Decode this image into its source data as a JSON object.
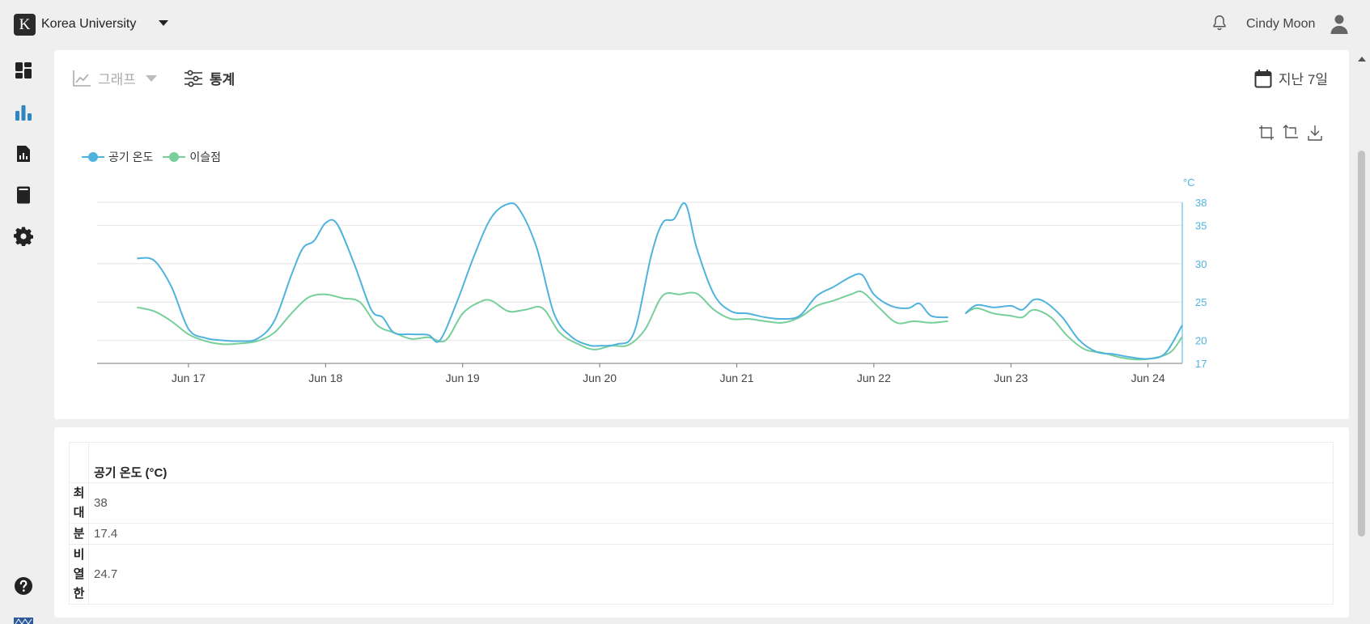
{
  "header": {
    "logo_letter": "K",
    "org_name": "Korea University",
    "user_name": "Cindy Moon"
  },
  "sidebar": {
    "items": [
      "dashboard-icon",
      "bar-chart-icon",
      "report-icon",
      "device-icon",
      "gear-icon",
      "help-icon"
    ]
  },
  "toolbar": {
    "graph_label": "그래프",
    "stats_label": "통계",
    "date_label": "지난 7일"
  },
  "colors": {
    "air_temp": "#4fb3de",
    "dew_point": "#77cf9b",
    "active_nav": "#2e86c1"
  },
  "chart_data": {
    "type": "line",
    "ylabel": "°C",
    "ylim": [
      17,
      38
    ],
    "yticks": [
      17,
      20,
      25,
      30,
      35,
      38
    ],
    "xlim": [
      "2024-06-16T08:00",
      "2024-06-24T06:00"
    ],
    "xticks": [
      {
        "date": "2024-06-17",
        "label": "Jun 17"
      },
      {
        "date": "2024-06-18",
        "label": "Jun 18"
      },
      {
        "date": "2024-06-19",
        "label": "Jun 19"
      },
      {
        "date": "2024-06-20",
        "label": "Jun 20"
      },
      {
        "date": "2024-06-21",
        "label": "Jun 21"
      },
      {
        "date": "2024-06-22",
        "label": "Jun 22"
      },
      {
        "date": "2024-06-23",
        "label": "Jun 23"
      },
      {
        "date": "2024-06-24",
        "label": "Jun 24"
      }
    ],
    "legend_position": "top-left",
    "grid": true,
    "series": [
      {
        "name": "공기 온도",
        "segments": [
          [
            [
              "2024-06-16T15:00",
              30.7
            ],
            [
              "2024-06-16T18:00",
              30.4
            ],
            [
              "2024-06-16T21:00",
              27.0
            ],
            [
              "2024-06-17T00:00",
              21.5
            ],
            [
              "2024-06-17T03:00",
              20.3
            ],
            [
              "2024-06-17T06:00",
              20.0
            ],
            [
              "2024-06-17T09:00",
              19.9
            ],
            [
              "2024-06-17T12:00",
              20.2
            ],
            [
              "2024-06-17T15:00",
              22.5
            ],
            [
              "2024-06-17T18:00",
              28.5
            ],
            [
              "2024-06-17T20:00",
              32.0
            ],
            [
              "2024-06-17T22:00",
              33.0
            ],
            [
              "2024-06-18T00:00",
              35.3
            ],
            [
              "2024-06-18T02:00",
              35.2
            ],
            [
              "2024-06-18T05:00",
              30.0
            ],
            [
              "2024-06-18T08:00",
              24.0
            ],
            [
              "2024-06-18T10:00",
              23.0
            ],
            [
              "2024-06-18T12:00",
              21.0
            ],
            [
              "2024-06-18T15:00",
              20.8
            ],
            [
              "2024-06-18T18:00",
              20.7
            ],
            [
              "2024-06-18T20:00",
              20.0
            ],
            [
              "2024-06-18T23:00",
              25.0
            ],
            [
              "2024-06-19T02:00",
              31.0
            ],
            [
              "2024-06-19T05:00",
              36.0
            ],
            [
              "2024-06-19T08:00",
              37.8
            ],
            [
              "2024-06-19T10:00",
              37.0
            ],
            [
              "2024-06-19T13:00",
              32.0
            ],
            [
              "2024-06-19T16:00",
              23.5
            ],
            [
              "2024-06-19T19:00",
              20.5
            ],
            [
              "2024-06-19T22:00",
              19.4
            ],
            [
              "2024-06-20T00:00",
              19.3
            ],
            [
              "2024-06-20T03:00",
              19.5
            ],
            [
              "2024-06-20T06:00",
              21.0
            ],
            [
              "2024-06-20T09:00",
              31.0
            ],
            [
              "2024-06-20T11:00",
              35.3
            ],
            [
              "2024-06-20T13:00",
              35.8
            ],
            [
              "2024-06-20T15:00",
              37.8
            ],
            [
              "2024-06-20T17:00",
              32.0
            ],
            [
              "2024-06-20T20:00",
              26.0
            ],
            [
              "2024-06-20T23:00",
              23.8
            ],
            [
              "2024-06-21T02:00",
              23.5
            ],
            [
              "2024-06-21T05:00",
              23.0
            ],
            [
              "2024-06-21T08:00",
              22.8
            ],
            [
              "2024-06-21T11:00",
              23.2
            ],
            [
              "2024-06-21T14:00",
              25.8
            ],
            [
              "2024-06-21T17:00",
              27.0
            ],
            [
              "2024-06-21T20:00",
              28.3
            ],
            [
              "2024-06-21T22:00",
              28.5
            ],
            [
              "2024-06-22T00:00",
              26.0
            ],
            [
              "2024-06-22T03:00",
              24.5
            ],
            [
              "2024-06-22T06:00",
              24.2
            ],
            [
              "2024-06-22T08:00",
              24.8
            ],
            [
              "2024-06-22T10:00",
              23.2
            ],
            [
              "2024-06-22T13:00",
              23.0
            ]
          ],
          [
            [
              "2024-06-22T16:00",
              23.5
            ],
            [
              "2024-06-22T18:00",
              24.6
            ],
            [
              "2024-06-22T21:00",
              24.3
            ],
            [
              "2024-06-23T00:00",
              24.5
            ],
            [
              "2024-06-23T02:00",
              24.0
            ],
            [
              "2024-06-23T04:00",
              25.3
            ],
            [
              "2024-06-23T06:00",
              25.0
            ],
            [
              "2024-06-23T09:00",
              23.0
            ],
            [
              "2024-06-23T12:00",
              20.0
            ],
            [
              "2024-06-23T15:00",
              18.5
            ],
            [
              "2024-06-23T18:00",
              18.2
            ],
            [
              "2024-06-23T21:00",
              17.8
            ],
            [
              "2024-06-24T00:00",
              17.6
            ],
            [
              "2024-06-24T03:00",
              18.3
            ],
            [
              "2024-06-24T06:00",
              22.0
            ]
          ]
        ]
      },
      {
        "name": "이슬점",
        "segments": [
          [
            [
              "2024-06-16T15:00",
              24.3
            ],
            [
              "2024-06-16T18:00",
              23.8
            ],
            [
              "2024-06-16T21:00",
              22.5
            ],
            [
              "2024-06-17T00:00",
              20.8
            ],
            [
              "2024-06-17T03:00",
              19.9
            ],
            [
              "2024-06-17T06:00",
              19.5
            ],
            [
              "2024-06-17T09:00",
              19.6
            ],
            [
              "2024-06-17T12:00",
              19.9
            ],
            [
              "2024-06-17T15:00",
              21.0
            ],
            [
              "2024-06-17T18:00",
              23.5
            ],
            [
              "2024-06-17T21:00",
              25.6
            ],
            [
              "2024-06-18T00:00",
              26.0
            ],
            [
              "2024-06-18T03:00",
              25.5
            ],
            [
              "2024-06-18T06:00",
              25.0
            ],
            [
              "2024-06-18T09:00",
              22.0
            ],
            [
              "2024-06-18T12:00",
              21.0
            ],
            [
              "2024-06-18T15:00",
              20.2
            ],
            [
              "2024-06-18T18:00",
              20.4
            ],
            [
              "2024-06-18T21:00",
              20.0
            ],
            [
              "2024-06-19T00:00",
              23.5
            ],
            [
              "2024-06-19T03:00",
              25.0
            ],
            [
              "2024-06-19T05:00",
              25.2
            ],
            [
              "2024-06-19T08:00",
              23.8
            ],
            [
              "2024-06-19T11:00",
              24.0
            ],
            [
              "2024-06-19T14:00",
              24.2
            ],
            [
              "2024-06-19T17:00",
              21.0
            ],
            [
              "2024-06-19T20:00",
              19.6
            ],
            [
              "2024-06-19T23:00",
              18.8
            ],
            [
              "2024-06-20T02:00",
              19.3
            ],
            [
              "2024-06-20T05:00",
              19.4
            ],
            [
              "2024-06-20T08:00",
              21.5
            ],
            [
              "2024-06-20T11:00",
              25.8
            ],
            [
              "2024-06-20T14:00",
              26.0
            ],
            [
              "2024-06-20T17:00",
              26.1
            ],
            [
              "2024-06-20T20:00",
              24.0
            ],
            [
              "2024-06-20T23:00",
              22.8
            ],
            [
              "2024-06-21T02:00",
              22.8
            ],
            [
              "2024-06-21T05:00",
              22.5
            ],
            [
              "2024-06-21T08:00",
              22.3
            ],
            [
              "2024-06-21T11:00",
              23.0
            ],
            [
              "2024-06-21T14:00",
              24.5
            ],
            [
              "2024-06-21T17:00",
              25.2
            ],
            [
              "2024-06-21T20:00",
              26.0
            ],
            [
              "2024-06-21T22:00",
              26.3
            ],
            [
              "2024-06-22T01:00",
              24.2
            ],
            [
              "2024-06-22T04:00",
              22.3
            ],
            [
              "2024-06-22T07:00",
              22.5
            ],
            [
              "2024-06-22T10:00",
              22.3
            ],
            [
              "2024-06-22T13:00",
              22.5
            ]
          ],
          [
            [
              "2024-06-22T16:00",
              23.5
            ],
            [
              "2024-06-22T18:00",
              24.2
            ],
            [
              "2024-06-22T21:00",
              23.5
            ],
            [
              "2024-06-23T00:00",
              23.2
            ],
            [
              "2024-06-23T02:00",
              23.0
            ],
            [
              "2024-06-23T04:00",
              24.0
            ],
            [
              "2024-06-23T07:00",
              23.0
            ],
            [
              "2024-06-23T10:00",
              20.5
            ],
            [
              "2024-06-23T13:00",
              18.8
            ],
            [
              "2024-06-23T16:00",
              18.4
            ],
            [
              "2024-06-23T19:00",
              17.8
            ],
            [
              "2024-06-23T22:00",
              17.5
            ],
            [
              "2024-06-24T01:00",
              17.7
            ],
            [
              "2024-06-24T04:00",
              18.5
            ],
            [
              "2024-06-24T06:00",
              20.5
            ]
          ]
        ]
      }
    ]
  },
  "stats": {
    "column_header": "공기 온도 (°C)",
    "rows": [
      {
        "label": "최대",
        "value": "38"
      },
      {
        "label": "분",
        "value": "17.4"
      },
      {
        "label": "비열한",
        "value": "24.7"
      }
    ]
  }
}
